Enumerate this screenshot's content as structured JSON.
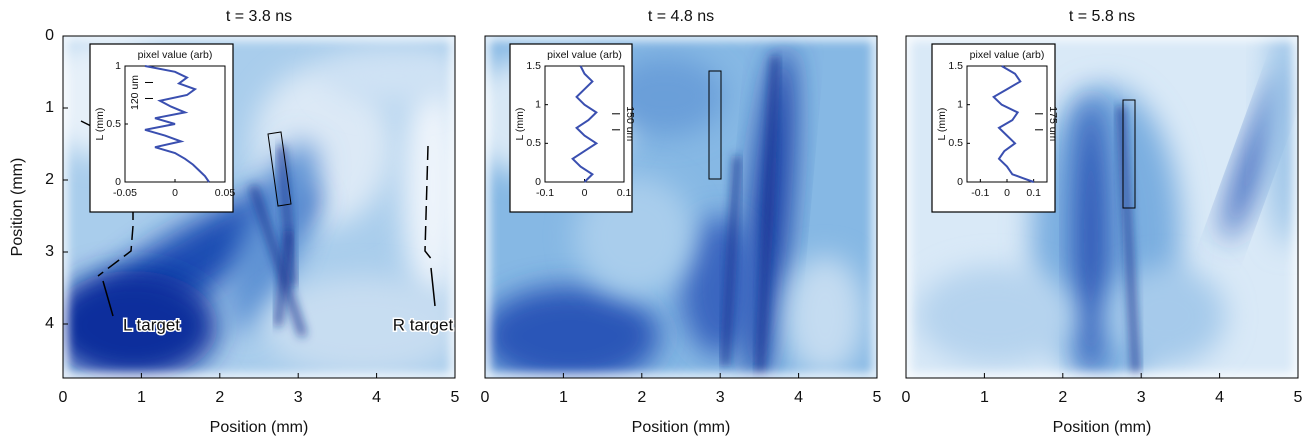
{
  "chart_data": [
    {
      "type": "image",
      "title": "t = 3.8 ns",
      "xlabel": "Position (mm)",
      "ylabel": "Position (mm)",
      "xlim": [
        0,
        5
      ],
      "ylim": [
        4.75,
        0
      ],
      "xticks": [
        0,
        1,
        2,
        3,
        4,
        5
      ],
      "yticks": [
        0,
        1,
        2,
        3,
        4
      ],
      "annotations": [
        "L target",
        "R target"
      ],
      "inset": {
        "type": "line",
        "title": "pixel value (arb)",
        "ylabel": "L (mm)",
        "annotation": "120 um",
        "xlim": [
          -0.05,
          0.05
        ],
        "ylim": [
          0,
          1
        ],
        "xticks": [
          -0.05,
          0,
          0.05
        ],
        "yticks": [
          0,
          0.5,
          1
        ],
        "color": "#3a4fb0",
        "x": [
          -0.03,
          0.0,
          0.012,
          0.004,
          0.02,
          0.012,
          -0.015,
          -0.004,
          0.01,
          -0.02,
          0.0,
          -0.03,
          -0.01,
          0.006,
          -0.02,
          0.0,
          0.01,
          0.018,
          0.024,
          0.03,
          0.034
        ],
        "values": [
          1,
          0.95,
          0.9,
          0.85,
          0.8,
          0.75,
          0.7,
          0.65,
          0.6,
          0.55,
          0.5,
          0.45,
          0.4,
          0.35,
          0.3,
          0.25,
          0.2,
          0.15,
          0.1,
          0.05,
          0
        ]
      }
    },
    {
      "type": "image",
      "title": "t = 4.8 ns",
      "xlabel": "Position (mm)",
      "xlim": [
        0,
        5
      ],
      "ylim": [
        4.75,
        0
      ],
      "xticks": [
        0,
        1,
        2,
        3,
        4,
        5
      ],
      "inset": {
        "type": "line",
        "title": "pixel value (arb)",
        "ylabel": "L (mm)",
        "annotation": "150 um",
        "xlim": [
          -0.1,
          0.1
        ],
        "ylim": [
          0,
          1.5
        ],
        "xticks": [
          -0.1,
          0,
          0.1
        ],
        "yticks": [
          0,
          0.5,
          1,
          1.5
        ],
        "color": "#3a4fb0",
        "x": [
          -0.01,
          0.0,
          0.02,
          0.0,
          -0.02,
          0.0,
          0.03,
          0.01,
          -0.02,
          0.0,
          0.03,
          0.0,
          -0.03,
          -0.01,
          0.02,
          0.01,
          0.0
        ],
        "values": [
          1.5,
          1.4,
          1.3,
          1.2,
          1.1,
          1.0,
          0.9,
          0.8,
          0.7,
          0.6,
          0.5,
          0.4,
          0.3,
          0.2,
          0.1,
          0.05,
          0
        ]
      }
    },
    {
      "type": "image",
      "title": "t = 5.8 ns",
      "xlabel": "Position (mm)",
      "xlim": [
        0,
        5
      ],
      "ylim": [
        4.75,
        0
      ],
      "xticks": [
        0,
        1,
        2,
        3,
        4,
        5
      ],
      "inset": {
        "type": "line",
        "title": "pixel value (arb)",
        "ylabel": "L (mm)",
        "annotation": "175 um",
        "xlim": [
          -0.15,
          0.15
        ],
        "ylim": [
          0,
          1.5
        ],
        "xticks": [
          -0.1,
          0,
          0.1
        ],
        "yticks": [
          0,
          0.5,
          1,
          1.5
        ],
        "color": "#3a4fb0",
        "x": [
          -0.02,
          0.03,
          0.05,
          0.0,
          -0.05,
          -0.02,
          0.04,
          0.02,
          -0.03,
          0.0,
          0.03,
          -0.01,
          -0.03,
          0.0,
          0.02,
          0.06,
          0.1
        ],
        "values": [
          1.5,
          1.4,
          1.3,
          1.2,
          1.1,
          1.0,
          0.9,
          0.8,
          0.7,
          0.6,
          0.5,
          0.4,
          0.3,
          0.2,
          0.1,
          0.05,
          0
        ]
      }
    }
  ]
}
